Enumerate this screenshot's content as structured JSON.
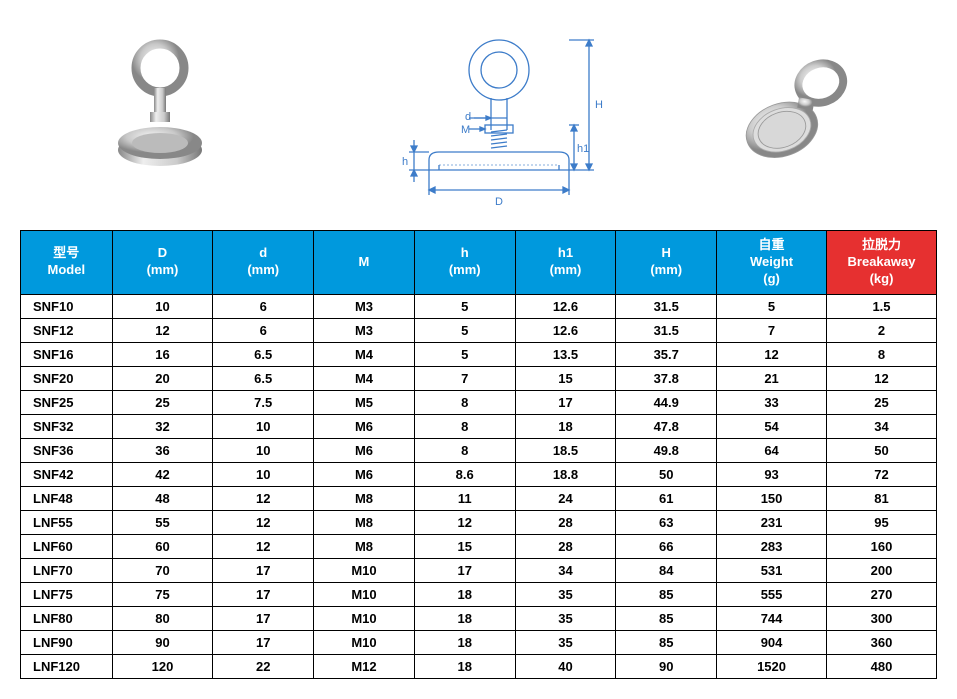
{
  "table": {
    "header_colors": {
      "blue": "#0099dd",
      "red": "#e63030",
      "text": "#ffffff"
    },
    "columns": [
      {
        "line1": "型号",
        "line2": "Model",
        "color": "blue",
        "width": "10%"
      },
      {
        "line1": "D",
        "line2": "(mm)",
        "color": "blue",
        "width": "11%"
      },
      {
        "line1": "d",
        "line2": "(mm)",
        "color": "blue",
        "width": "11%"
      },
      {
        "line1": "M",
        "line2": "",
        "color": "blue",
        "width": "11%"
      },
      {
        "line1": "h",
        "line2": "(mm)",
        "color": "blue",
        "width": "11%"
      },
      {
        "line1": "h1",
        "line2": "(mm)",
        "color": "blue",
        "width": "11%"
      },
      {
        "line1": "H",
        "line2": "(mm)",
        "color": "blue",
        "width": "11%"
      },
      {
        "line1": "自重",
        "line2": "Weight",
        "line3": "(g)",
        "color": "blue",
        "width": "12%"
      },
      {
        "line1": "拉脱力",
        "line2": "Breakaway",
        "line3": "(kg)",
        "color": "red",
        "width": "12%"
      }
    ],
    "rows": [
      [
        "SNF10",
        "10",
        "6",
        "M3",
        "5",
        "12.6",
        "31.5",
        "5",
        "1.5"
      ],
      [
        "SNF12",
        "12",
        "6",
        "M3",
        "5",
        "12.6",
        "31.5",
        "7",
        "2"
      ],
      [
        "SNF16",
        "16",
        "6.5",
        "M4",
        "5",
        "13.5",
        "35.7",
        "12",
        "8"
      ],
      [
        "SNF20",
        "20",
        "6.5",
        "M4",
        "7",
        "15",
        "37.8",
        "21",
        "12"
      ],
      [
        "SNF25",
        "25",
        "7.5",
        "M5",
        "8",
        "17",
        "44.9",
        "33",
        "25"
      ],
      [
        "SNF32",
        "32",
        "10",
        "M6",
        "8",
        "18",
        "47.8",
        "54",
        "34"
      ],
      [
        "SNF36",
        "36",
        "10",
        "M6",
        "8",
        "18.5",
        "49.8",
        "64",
        "50"
      ],
      [
        "SNF42",
        "42",
        "10",
        "M6",
        "8.6",
        "18.8",
        "50",
        "93",
        "72"
      ],
      [
        "LNF48",
        "48",
        "12",
        "M8",
        "11",
        "24",
        "61",
        "150",
        "81"
      ],
      [
        "LNF55",
        "55",
        "12",
        "M8",
        "12",
        "28",
        "63",
        "231",
        "95"
      ],
      [
        "LNF60",
        "60",
        "12",
        "M8",
        "15",
        "28",
        "66",
        "283",
        "160"
      ],
      [
        "LNF70",
        "70",
        "17",
        "M10",
        "17",
        "34",
        "84",
        "531",
        "200"
      ],
      [
        "LNF75",
        "75",
        "17",
        "M10",
        "18",
        "35",
        "85",
        "555",
        "270"
      ],
      [
        "LNF80",
        "80",
        "17",
        "M10",
        "18",
        "35",
        "85",
        "744",
        "300"
      ],
      [
        "LNF90",
        "90",
        "17",
        "M10",
        "18",
        "35",
        "85",
        "904",
        "360"
      ],
      [
        "LNF120",
        "120",
        "22",
        "M12",
        "18",
        "40",
        "90",
        "1520",
        "480"
      ]
    ]
  },
  "diagram": {
    "labels": {
      "D": "D",
      "d": "d",
      "M": "M",
      "h": "h",
      "h1": "h1",
      "H": "H"
    },
    "line_color": "#3d7cc9",
    "line_width": 1.2
  }
}
